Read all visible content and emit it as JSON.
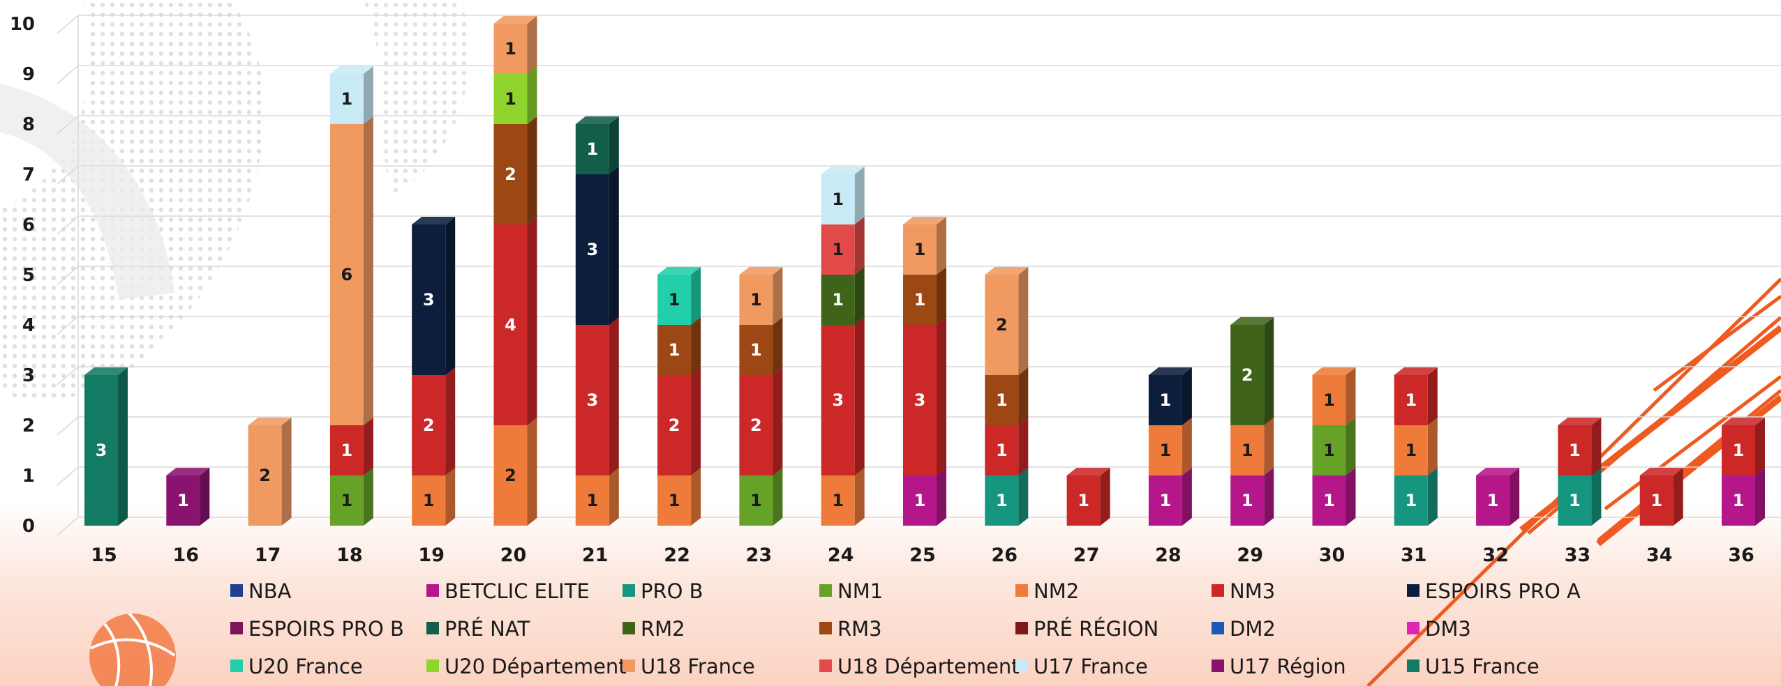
{
  "chart_data": {
    "type": "bar",
    "stacked": true,
    "categories": [
      "15",
      "16",
      "17",
      "18",
      "19",
      "20",
      "21",
      "22",
      "23",
      "24",
      "25",
      "26",
      "27",
      "28",
      "29",
      "30",
      "31",
      "32",
      "33",
      "34",
      "36"
    ],
    "ylim": [
      0,
      10
    ],
    "yticks": [
      "0",
      "1",
      "2",
      "3",
      "4",
      "5",
      "6",
      "7",
      "8",
      "9",
      "10"
    ],
    "grid": true,
    "legend_position": "bottom",
    "series": [
      {
        "name": "NBA",
        "color": "#1f3f8f",
        "values": [
          0,
          0,
          0,
          0,
          0,
          0,
          0,
          0,
          0,
          0,
          0,
          0,
          0,
          0,
          0,
          0,
          0,
          0,
          0,
          0,
          0
        ]
      },
      {
        "name": "BETCLIC ELITE",
        "color": "#b5168a",
        "values": [
          0,
          0,
          0,
          0,
          0,
          0,
          0,
          0,
          0,
          0,
          1,
          0,
          0,
          1,
          1,
          1,
          0,
          1,
          0,
          0,
          1
        ]
      },
      {
        "name": "PRO B",
        "color": "#17967f",
        "values": [
          0,
          0,
          0,
          0,
          0,
          0,
          0,
          0,
          0,
          0,
          0,
          1,
          0,
          0,
          0,
          0,
          1,
          0,
          1,
          0,
          0
        ]
      },
      {
        "name": "NM1",
        "color": "#66a227",
        "values": [
          0,
          0,
          0,
          1,
          0,
          0,
          0,
          0,
          1,
          0,
          0,
          0,
          0,
          0,
          0,
          1,
          0,
          0,
          0,
          0,
          0
        ]
      },
      {
        "name": "NM2",
        "color": "#ee7b3a",
        "values": [
          0,
          0,
          0,
          0,
          1,
          2,
          1,
          1,
          0,
          1,
          0,
          0,
          0,
          1,
          1,
          1,
          1,
          0,
          0,
          0,
          0
        ]
      },
      {
        "name": "NM3",
        "color": "#cc2828",
        "values": [
          0,
          0,
          0,
          1,
          2,
          4,
          3,
          2,
          2,
          3,
          3,
          1,
          1,
          0,
          0,
          0,
          1,
          0,
          1,
          1,
          1
        ]
      },
      {
        "name": "ESPOIRS PRO A",
        "color": "#0d1e3d",
        "values": [
          0,
          0,
          0,
          0,
          3,
          0,
          3,
          0,
          0,
          0,
          0,
          0,
          0,
          1,
          0,
          0,
          0,
          0,
          0,
          0,
          0
        ]
      },
      {
        "name": "ESPOIRS PRO B",
        "color": "#7a1558",
        "values": [
          0,
          0,
          0,
          0,
          0,
          0,
          0,
          0,
          0,
          0,
          0,
          0,
          0,
          0,
          0,
          0,
          0,
          0,
          0,
          0,
          0
        ]
      },
      {
        "name": "PRÉ NAT",
        "color": "#135e4a",
        "values": [
          0,
          0,
          0,
          0,
          0,
          0,
          1,
          0,
          0,
          0,
          0,
          0,
          0,
          0,
          0,
          0,
          0,
          0,
          0,
          0,
          0
        ]
      },
      {
        "name": "RM2",
        "color": "#3f6419",
        "values": [
          0,
          0,
          0,
          0,
          0,
          0,
          0,
          0,
          0,
          1,
          0,
          0,
          0,
          0,
          2,
          0,
          0,
          0,
          0,
          0,
          0
        ]
      },
      {
        "name": "RM3",
        "color": "#9c4714",
        "values": [
          0,
          0,
          0,
          0,
          0,
          2,
          0,
          1,
          1,
          0,
          1,
          1,
          0,
          0,
          0,
          0,
          0,
          0,
          0,
          0,
          0
        ]
      },
      {
        "name": "PRÉ RÉGION",
        "color": "#7d1719",
        "values": [
          0,
          0,
          0,
          0,
          0,
          0,
          0,
          0,
          0,
          0,
          0,
          0,
          0,
          0,
          0,
          0,
          0,
          0,
          0,
          0,
          0
        ]
      },
      {
        "name": "DM2",
        "color": "#1a5ab8",
        "values": [
          0,
          0,
          0,
          0,
          0,
          0,
          0,
          0,
          0,
          0,
          0,
          0,
          0,
          0,
          0,
          0,
          0,
          0,
          0,
          0,
          0
        ]
      },
      {
        "name": "DM3",
        "color": "#e025b5",
        "values": [
          0,
          0,
          0,
          0,
          0,
          0,
          0,
          0,
          0,
          0,
          0,
          0,
          0,
          0,
          0,
          0,
          0,
          0,
          0,
          0,
          0
        ]
      },
      {
        "name": "U20 France",
        "color": "#21cfaa",
        "values": [
          0,
          0,
          0,
          0,
          0,
          0,
          0,
          1,
          0,
          0,
          0,
          0,
          0,
          0,
          0,
          0,
          0,
          0,
          0,
          0,
          0
        ]
      },
      {
        "name": "U20 Département",
        "color": "#8fd42d",
        "values": [
          0,
          0,
          0,
          0,
          0,
          1,
          0,
          0,
          0,
          0,
          0,
          0,
          0,
          0,
          0,
          0,
          0,
          0,
          0,
          0,
          0
        ]
      },
      {
        "name": "U18 France",
        "color": "#f09a62",
        "values": [
          0,
          0,
          2,
          6,
          0,
          1,
          0,
          0,
          1,
          0,
          1,
          2,
          0,
          0,
          0,
          0,
          0,
          0,
          0,
          0,
          0
        ]
      },
      {
        "name": "U18 Département",
        "color": "#e24a4a",
        "values": [
          0,
          0,
          0,
          0,
          0,
          0,
          0,
          0,
          0,
          1,
          0,
          0,
          0,
          0,
          0,
          0,
          0,
          0,
          0,
          0,
          0
        ]
      },
      {
        "name": "U17 France",
        "color": "#c8eaf6",
        "values": [
          0,
          0,
          0,
          1,
          0,
          0,
          0,
          0,
          0,
          1,
          0,
          0,
          0,
          0,
          0,
          0,
          0,
          0,
          0,
          0,
          0
        ]
      },
      {
        "name": "U17 Région",
        "color": "#8a1370",
        "values": [
          0,
          1,
          0,
          0,
          0,
          0,
          0,
          0,
          0,
          0,
          0,
          0,
          0,
          0,
          0,
          0,
          0,
          0,
          0,
          0,
          0
        ]
      },
      {
        "name": "U15 France",
        "color": "#137a63",
        "values": [
          3,
          0,
          0,
          0,
          0,
          0,
          0,
          0,
          0,
          0,
          0,
          0,
          0,
          0,
          0,
          0,
          0,
          0,
          0,
          0,
          0
        ]
      }
    ]
  }
}
